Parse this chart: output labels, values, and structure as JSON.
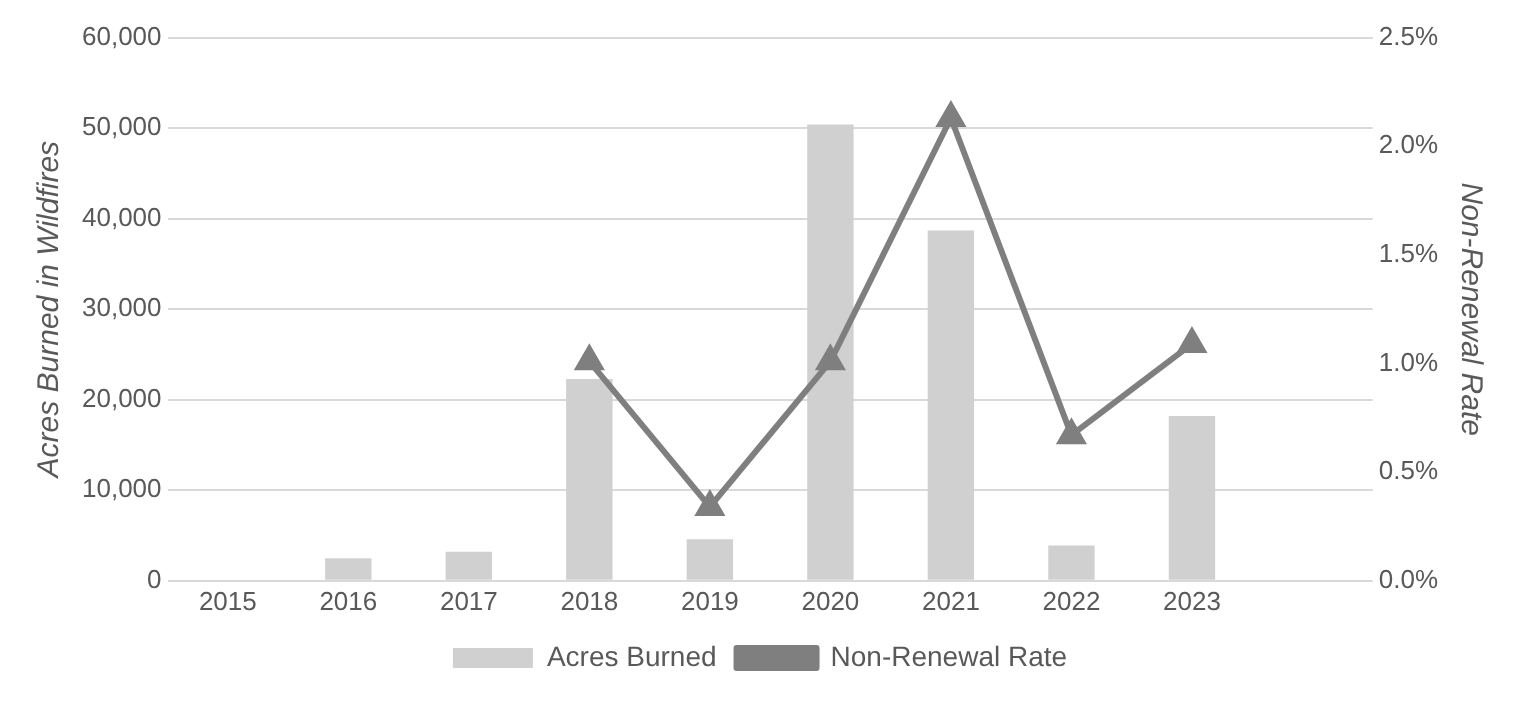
{
  "chart_data": {
    "type": "bar",
    "categories": [
      "2015",
      "2016",
      "2017",
      "2018",
      "2019",
      "2020",
      "2021",
      "2022",
      "2023",
      null
    ],
    "series": [
      {
        "name": "Acres Burned",
        "color": "#d0d0d0",
        "values": [
          0,
          2500,
          3200,
          22300,
          4600,
          50400,
          38700,
          3900,
          18200,
          null
        ]
      },
      {
        "name": "Non-Renewal Rate",
        "type": "line",
        "axis": "y2",
        "color": "#7f7f7f",
        "marker": "triangle",
        "values": [
          null,
          null,
          null,
          1.01,
          0.34,
          1.01,
          2.13,
          0.67,
          1.09,
          null
        ]
      }
    ],
    "ylabel": "Acres Burned in Wildfires",
    "y2label": "Non-Renewal Rate",
    "ylim": [
      0,
      60000
    ],
    "yticks": [
      {
        "value": 0,
        "label": "0"
      },
      {
        "value": 10000,
        "label": "10,000"
      },
      {
        "value": 20000,
        "label": "20,000"
      },
      {
        "value": 30000,
        "label": "30,000"
      },
      {
        "value": 40000,
        "label": "40,000"
      },
      {
        "value": 50000,
        "label": "50,000"
      },
      {
        "value": 60000,
        "label": "60,000"
      }
    ],
    "y2lim": [
      0,
      2.5
    ],
    "y2ticks": [
      {
        "value": 0,
        "label": "0.0%"
      },
      {
        "value": 0.5,
        "label": "0.5%"
      },
      {
        "value": 1,
        "label": "1.0%"
      },
      {
        "value": 1.5,
        "label": "1.5%"
      },
      {
        "value": 2,
        "label": "2.0%"
      },
      {
        "value": 2.5,
        "label": "2.5%"
      }
    ],
    "grid": "y",
    "legend": "bottom"
  }
}
